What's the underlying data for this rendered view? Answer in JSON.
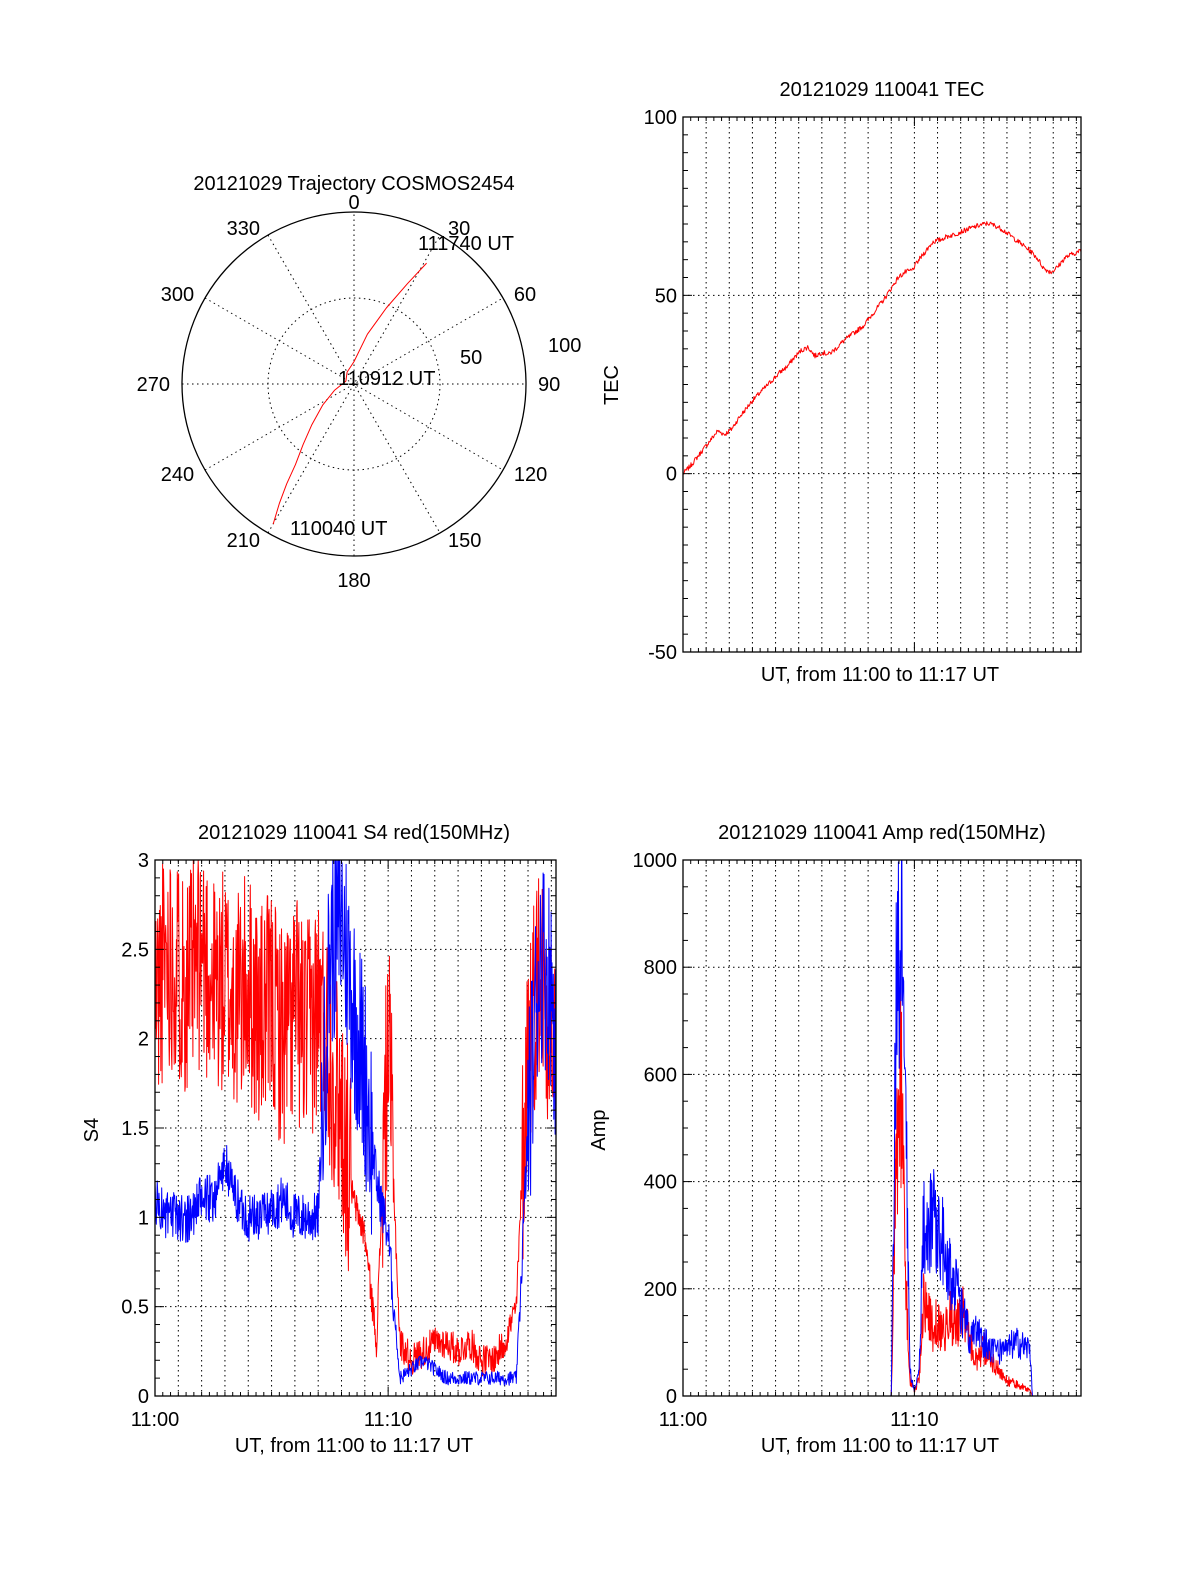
{
  "colors": {
    "red": "#ff0000",
    "blue": "#0000ff",
    "black": "#000000"
  },
  "chart_data": [
    {
      "type": "polar",
      "title": "20121029 Trajectory COSMOS2454",
      "azimuth_labels": [
        "0",
        "30",
        "60",
        "90",
        "120",
        "150",
        "180",
        "210",
        "240",
        "270",
        "300",
        "330"
      ],
      "radial_labels": [
        "50",
        "100"
      ],
      "rlim": [
        0,
        100
      ],
      "grid": true,
      "annotations": [
        "111740 UT",
        "110912 UT",
        "110040 UT"
      ],
      "series": [
        {
          "color": "red",
          "az_deg": [
            210,
            212,
            214,
            216,
            220,
            226,
            236,
            252,
            290,
            330,
            0,
            15,
            23,
            28,
            31
          ],
          "r": [
            94,
            82,
            70,
            58,
            46,
            34,
            22,
            12,
            5,
            8,
            13,
            30,
            48,
            66,
            82
          ]
        }
      ]
    },
    {
      "type": "line",
      "title": "20121029 110041 TEC",
      "xlabel": "UT, from 11:00 to 11:17 UT",
      "ylabel": "TEC",
      "xlim": [
        0,
        17.2
      ],
      "ylim": [
        -50,
        100
      ],
      "yticks": [
        "-50",
        "0",
        "50",
        "100"
      ],
      "grid": true,
      "series": [
        {
          "color": "red",
          "x": [
            0.0,
            0.3,
            0.6,
            0.9,
            1.2,
            1.5,
            1.8,
            2.1,
            2.4,
            2.7,
            3.0,
            3.3,
            3.6,
            3.9,
            4.2,
            4.5,
            4.8,
            5.1,
            5.4,
            5.7,
            6.0,
            6.3,
            6.6,
            6.9,
            7.2,
            7.5,
            7.8,
            8.1,
            8.4,
            8.7,
            9.0,
            9.3,
            9.6,
            9.9,
            10.2,
            10.5,
            10.8,
            11.1,
            11.4,
            11.7,
            12.0,
            12.3,
            12.6,
            12.9,
            13.2,
            13.5,
            13.8,
            14.1,
            14.4,
            14.7,
            15.0,
            15.3,
            15.6,
            15.9,
            16.2,
            16.5,
            16.8,
            17.2
          ],
          "y": [
            0.0,
            2.0,
            4.5,
            7.0,
            9.5,
            12.0,
            11.0,
            12.5,
            15.5,
            18.0,
            20.5,
            22.5,
            24.5,
            26.5,
            28.5,
            30.0,
            32.5,
            34.5,
            35.5,
            33.0,
            34.0,
            33.5,
            35.0,
            37.0,
            38.5,
            40.0,
            41.5,
            44.0,
            46.5,
            49.0,
            52.0,
            55.0,
            56.5,
            57.0,
            60.0,
            62.5,
            65.0,
            65.5,
            66.5,
            67.0,
            67.8,
            68.5,
            69.2,
            69.8,
            70.2,
            69.5,
            68.5,
            67.0,
            65.5,
            64.0,
            62.5,
            60.5,
            57.5,
            56.5,
            58.0,
            60.5,
            61.5,
            62.5
          ]
        }
      ]
    },
    {
      "type": "line",
      "title": "20121029 110041 S4 red(150MHz)",
      "xlabel": "UT, from 11:00 to 11:17 UT",
      "ylabel": "S4",
      "xlim": [
        0,
        17.2
      ],
      "ylim": [
        0,
        3
      ],
      "xticks": [
        "11:00",
        "11:10"
      ],
      "yticks": [
        "0",
        "0.5",
        "1",
        "1.5",
        "2",
        "2.5",
        "3"
      ],
      "grid": true,
      "series": [
        {
          "color": "red",
          "x": [
            0.0,
            0.5,
            1.0,
            1.5,
            2.0,
            2.5,
            3.0,
            3.5,
            4.0,
            4.5,
            5.0,
            5.5,
            6.0,
            6.5,
            7.0,
            7.5,
            8.0,
            8.5,
            9.0,
            9.5,
            10.0,
            10.5,
            11.0,
            11.5,
            12.0,
            12.5,
            13.0,
            13.5,
            14.0,
            14.5,
            15.0,
            15.5,
            16.0,
            16.5,
            17.0,
            17.2
          ],
          "y": [
            2.2,
            2.5,
            2.4,
            2.3,
            2.5,
            2.3,
            2.3,
            2.2,
            2.3,
            2.1,
            2.2,
            2.0,
            2.2,
            2.0,
            2.2,
            1.9,
            1.6,
            1.1,
            0.9,
            0.3,
            2.0,
            0.3,
            0.2,
            0.25,
            0.3,
            0.3,
            0.25,
            0.3,
            0.2,
            0.2,
            0.3,
            0.5,
            2.0,
            2.4,
            2.1,
            1.8
          ]
        },
        {
          "color": "blue",
          "x": [
            0.0,
            0.5,
            1.0,
            1.5,
            2.0,
            2.5,
            3.0,
            3.5,
            4.0,
            4.5,
            5.0,
            5.5,
            6.0,
            6.5,
            7.0,
            7.5,
            8.0,
            8.5,
            9.0,
            9.5,
            10.0,
            10.5,
            11.0,
            11.5,
            12.0,
            12.5,
            13.0,
            13.5,
            14.0,
            14.5,
            15.0,
            15.5,
            16.0,
            16.5,
            17.0,
            17.2
          ],
          "y": [
            1.1,
            1.0,
            1.0,
            1.0,
            1.1,
            1.1,
            1.3,
            1.1,
            1.0,
            1.0,
            1.05,
            1.1,
            1.0,
            1.0,
            1.0,
            2.5,
            2.7,
            2.2,
            1.8,
            1.2,
            0.9,
            0.1,
            0.15,
            0.2,
            0.15,
            0.1,
            0.1,
            0.1,
            0.1,
            0.1,
            0.1,
            0.1,
            1.5,
            2.5,
            2.3,
            2.0
          ]
        }
      ]
    },
    {
      "type": "line",
      "title": "20121029 110041 Amp red(150MHz)",
      "xlabel": "UT, from 11:00 to 11:17 UT",
      "ylabel": "Amp",
      "xlim": [
        0,
        17.2
      ],
      "ylim": [
        0,
        1000
      ],
      "xticks": [
        "11:00",
        "11:10"
      ],
      "yticks": [
        "0",
        "200",
        "400",
        "600",
        "800",
        "1000"
      ],
      "grid": true,
      "series": [
        {
          "color": "red",
          "x": [
            0.0,
            9.0,
            9.2,
            9.4,
            9.6,
            9.8,
            10.0,
            10.2,
            10.4,
            10.6,
            10.8,
            11.0,
            11.2,
            11.5,
            11.8,
            12.1,
            12.4,
            12.7,
            13.0,
            13.3,
            13.6,
            13.9,
            14.2,
            14.5,
            14.8,
            15.0,
            15.1,
            17.2
          ],
          "y": [
            0,
            0,
            450,
            620,
            250,
            30,
            10,
            30,
            180,
            150,
            120,
            140,
            110,
            150,
            130,
            160,
            100,
            60,
            90,
            70,
            50,
            30,
            25,
            20,
            15,
            10,
            0,
            0
          ]
        },
        {
          "color": "blue",
          "x": [
            0.0,
            9.0,
            9.2,
            9.4,
            9.6,
            9.8,
            10.0,
            10.2,
            10.4,
            10.6,
            10.8,
            11.0,
            11.2,
            11.5,
            11.8,
            12.1,
            12.4,
            12.7,
            13.0,
            13.3,
            13.6,
            13.9,
            14.2,
            14.5,
            14.8,
            15.0,
            15.1,
            17.2
          ],
          "y": [
            0,
            0,
            700,
            860,
            600,
            50,
            10,
            40,
            330,
            300,
            350,
            320,
            300,
            240,
            200,
            150,
            110,
            120,
            100,
            90,
            85,
            80,
            95,
            100,
            90,
            90,
            0,
            0
          ]
        }
      ]
    }
  ]
}
